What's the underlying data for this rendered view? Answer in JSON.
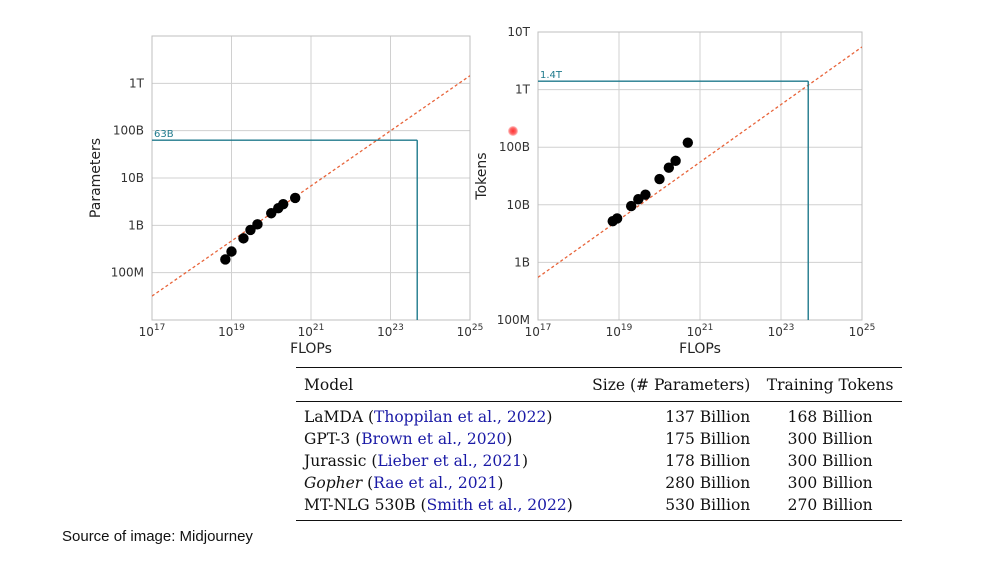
{
  "chart_data": [
    {
      "type": "scatter",
      "title": "",
      "xlabel": "FLOPs",
      "ylabel": "Parameters",
      "x_scale": "log",
      "y_scale": "log",
      "x_ticks": [
        "10^17",
        "10^19",
        "10^21",
        "10^23",
        "10^25"
      ],
      "y_ticks": [
        "100M",
        "1B",
        "10B",
        "100B",
        "1T"
      ],
      "xlim": [
        1e+17,
        1e+25
      ],
      "ylim": [
        10000000.0,
        10000000000000.0
      ],
      "grid": true,
      "points": [
        {
          "x": 7e+18,
          "y": 190000000.0
        },
        {
          "x": 1e+19,
          "y": 280000000.0
        },
        {
          "x": 2e+19,
          "y": 530000000.0
        },
        {
          "x": 3e+19,
          "y": 800000000.0
        },
        {
          "x": 4.5e+19,
          "y": 1050000000.0
        },
        {
          "x": 1e+20,
          "y": 1800000000.0
        },
        {
          "x": 1.5e+20,
          "y": 2300000000.0
        },
        {
          "x": 2e+20,
          "y": 2800000000.0
        },
        {
          "x": 4e+20,
          "y": 3800000000.0
        }
      ],
      "trend": [
        {
          "x": 1e+17,
          "y": 32000000.0
        },
        {
          "x": 1e+25,
          "y": 1450000000000.0
        }
      ],
      "reference": {
        "label": "63B",
        "x": 4.7e+23,
        "y": 63000000000.0
      }
    },
    {
      "type": "scatter",
      "title": "",
      "xlabel": "FLOPs",
      "ylabel": "Tokens",
      "x_scale": "log",
      "y_scale": "log",
      "x_ticks": [
        "10^17",
        "10^19",
        "10^21",
        "10^23",
        "10^25"
      ],
      "y_ticks": [
        "100M",
        "1B",
        "10B",
        "100B",
        "1T",
        "10T"
      ],
      "xlim": [
        1e+17,
        1e+25
      ],
      "ylim": [
        100000000.0,
        10000000000000.0
      ],
      "grid": true,
      "points": [
        {
          "x": 7e+18,
          "y": 5200000000.0
        },
        {
          "x": 9e+18,
          "y": 5800000000.0
        },
        {
          "x": 2e+19,
          "y": 9500000000.0
        },
        {
          "x": 3e+19,
          "y": 12500000000.0
        },
        {
          "x": 4.5e+19,
          "y": 15000000000.0
        },
        {
          "x": 1e+20,
          "y": 28000000000.0
        },
        {
          "x": 1.7e+20,
          "y": 44000000000.0
        },
        {
          "x": 2.5e+20,
          "y": 58000000000.0
        },
        {
          "x": 5e+20,
          "y": 120000000000.0
        }
      ],
      "trend": [
        {
          "x": 1e+17,
          "y": 550000000.0
        },
        {
          "x": 1e+25,
          "y": 5500000000000.0
        }
      ],
      "reference": {
        "label": "1.4T",
        "x": 4.7e+23,
        "y": 1400000000000.0
      }
    }
  ],
  "table": {
    "headers": [
      "Model",
      "Size (# Parameters)",
      "Training Tokens"
    ],
    "rows": [
      {
        "model": "LaMDA",
        "model_italic": false,
        "cite": "Thoppilan et al., 2022",
        "size": "137 Billion",
        "tokens": "168 Billion"
      },
      {
        "model": "GPT-3",
        "model_italic": false,
        "cite": "Brown et al., 2020",
        "size": "175 Billion",
        "tokens": "300 Billion"
      },
      {
        "model": "Jurassic",
        "model_italic": false,
        "cite": "Lieber et al., 2021",
        "size": "178 Billion",
        "tokens": "300 Billion"
      },
      {
        "model": "Gopher",
        "model_italic": true,
        "cite": "Rae et al., 2021",
        "size": "280 Billion",
        "tokens": "300 Billion"
      },
      {
        "model": "MT-NLG 530B",
        "model_italic": false,
        "cite": "Smith et al., 2022",
        "size": "530 Billion",
        "tokens": "270 Billion"
      }
    ]
  },
  "caption": "Source of image: Midjourney",
  "colors": {
    "points": "#000000",
    "trend": "#e8643a",
    "reference": "#1f7a8c",
    "grid": "#d0d0d0"
  }
}
